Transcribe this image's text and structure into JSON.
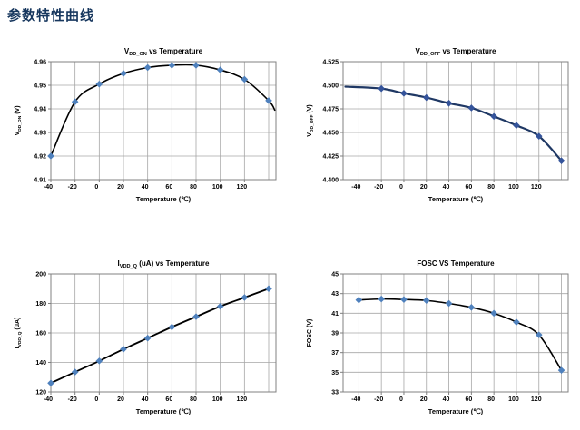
{
  "page": {
    "title": "参数特性曲线",
    "title_color": "#17375e",
    "background": "#ffffff"
  },
  "chart_data": [
    {
      "id": "vdd-on-vs-temperature",
      "type": "line",
      "title_parts": [
        {
          "t": "V"
        },
        {
          "t": "DD_ON",
          "sub": true
        },
        {
          "t": " vs Temperature"
        }
      ],
      "ylabel_parts": [
        {
          "t": "V"
        },
        {
          "t": "DD_ON",
          "sub": true
        },
        {
          "t": " (V)"
        }
      ],
      "xlabel": "Temperature (℃)",
      "x": [
        -40,
        -20,
        0,
        20,
        40,
        60,
        80,
        100,
        120,
        140
      ],
      "y": [
        4.92,
        4.943,
        4.9505,
        4.955,
        4.9575,
        4.9585,
        4.9585,
        4.9565,
        4.9525,
        4.9435
      ],
      "tail": [
        145,
        4.9395
      ],
      "xlim": [
        -40,
        146
      ],
      "ylim": [
        4.91,
        4.96
      ],
      "xgrid": [
        -40,
        -20,
        0,
        20,
        40,
        60,
        80,
        100,
        120,
        140
      ],
      "xticks": [
        -40,
        -20,
        0,
        20,
        40,
        60,
        80,
        100,
        120
      ],
      "xtick_labels": [
        "-40",
        "-20",
        "0",
        "20",
        "40",
        "60",
        "80",
        "100",
        "120"
      ],
      "yticks": [
        4.91,
        4.92,
        4.93,
        4.94,
        4.95,
        4.96
      ],
      "ytick_labels": [
        "4.91",
        "4.92",
        "4.93",
        "4.94",
        "4.95",
        "4.96"
      ],
      "grid": true,
      "legend": "none",
      "line_color": "#000000",
      "line_width": 1.6,
      "marker_color": "#4f81bd"
    },
    {
      "id": "vdd-off-vs-temperature",
      "type": "line",
      "title_parts": [
        {
          "t": "V"
        },
        {
          "t": "DD_OFF",
          "sub": true
        },
        {
          "t": " vs Temperature"
        }
      ],
      "ylabel_parts": [
        {
          "t": "V"
        },
        {
          "t": "DD_OFF",
          "sub": true
        },
        {
          "t": " (V)"
        }
      ],
      "xlabel": "Temperature (℃)",
      "head": [
        -52,
        4.4985
      ],
      "x": [
        -20,
        0,
        20,
        40,
        60,
        80,
        100,
        120,
        140
      ],
      "y": [
        4.4965,
        4.4915,
        4.487,
        4.481,
        4.476,
        4.467,
        4.4575,
        4.446,
        4.42
      ],
      "xlim": [
        -54,
        146
      ],
      "ylim": [
        4.4,
        4.525
      ],
      "xgrid": [
        -40,
        -20,
        0,
        20,
        40,
        60,
        80,
        100,
        120,
        140
      ],
      "xticks": [
        -40,
        -20,
        0,
        20,
        40,
        60,
        80,
        100,
        120
      ],
      "xtick_labels": [
        "-40",
        "-20",
        "0",
        "20",
        "40",
        "60",
        "80",
        "100",
        "120"
      ],
      "yticks": [
        4.4,
        4.425,
        4.45,
        4.475,
        4.5,
        4.525
      ],
      "ytick_labels": [
        "4.400",
        "4.425",
        "4.450",
        "4.475",
        "4.500",
        "4.525"
      ],
      "grid": true,
      "legend": "none",
      "line_color": "#1f3864",
      "line_width": 2.2,
      "marker_color": "#35549b"
    },
    {
      "id": "ivdd-q-vs-temperature",
      "type": "line",
      "title_parts": [
        {
          "t": "I"
        },
        {
          "t": "VDD_Q",
          "sub": true
        },
        {
          "t": " (uA) vs Temperature"
        }
      ],
      "ylabel_parts": [
        {
          "t": "I"
        },
        {
          "t": "VDD_Q",
          "sub": true
        },
        {
          "t": " (uA)"
        }
      ],
      "xlabel": "Temperature (℃)",
      "x": [
        -40,
        -20,
        0,
        20,
        40,
        60,
        80,
        100,
        120,
        140
      ],
      "y": [
        126,
        133.5,
        141,
        149,
        156.5,
        164,
        171,
        178,
        184,
        190
      ],
      "xlim": [
        -40,
        146
      ],
      "ylim": [
        120,
        200
      ],
      "xgrid": [
        -40,
        -20,
        0,
        20,
        40,
        60,
        80,
        100,
        120,
        140
      ],
      "xticks": [
        -40,
        -20,
        0,
        20,
        40,
        60,
        80,
        100,
        120
      ],
      "xtick_labels": [
        "-40",
        "-20",
        "0",
        "20",
        "40",
        "60",
        "80",
        "100",
        "120"
      ],
      "yticks": [
        120,
        140,
        160,
        180,
        200
      ],
      "ytick_labels": [
        "120",
        "140",
        "160",
        "180",
        "200"
      ],
      "grid": true,
      "legend": "none",
      "line_color": "#000000",
      "line_width": 1.8,
      "marker_color": "#4f81bd"
    },
    {
      "id": "fosc-vs-temperature",
      "type": "line",
      "title_parts": [
        {
          "t": "FOSC VS Temperature"
        }
      ],
      "ylabel_parts": [
        {
          "t": "FOSC (V)"
        }
      ],
      "xlabel": "Temperature (℃)",
      "x": [
        -40,
        -20,
        0,
        20,
        40,
        60,
        80,
        100,
        120,
        140
      ],
      "y": [
        42.35,
        42.45,
        42.4,
        42.3,
        42.0,
        41.6,
        41.0,
        40.1,
        38.8,
        35.2
      ],
      "xlim": [
        -54,
        146
      ],
      "ylim": [
        33,
        45
      ],
      "xgrid": [
        -40,
        -20,
        0,
        20,
        40,
        60,
        80,
        100,
        120,
        140
      ],
      "xticks": [
        -40,
        -20,
        0,
        20,
        40,
        60,
        80,
        100,
        120
      ],
      "xtick_labels": [
        "-40",
        "-20",
        "0",
        "20",
        "40",
        "60",
        "80",
        "100",
        "120"
      ],
      "yticks": [
        33,
        35,
        37,
        39,
        41,
        43,
        45
      ],
      "ytick_labels": [
        "33",
        "35",
        "37",
        "39",
        "41",
        "43",
        "45"
      ],
      "grid": true,
      "legend": "none",
      "line_color": "#000000",
      "line_width": 1.6,
      "marker_color": "#4f81bd"
    }
  ],
  "style": {
    "grid_color": "#a6a6a6",
    "border_color": "#808080"
  }
}
